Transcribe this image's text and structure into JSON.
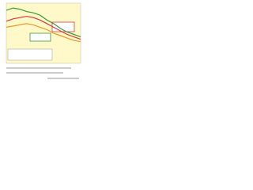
{
  "chart_data": {
    "type": "line",
    "categories": [
      null,
      null,
      null,
      null,
      null,
      null,
      null,
      null,
      null,
      null,
      null,
      null
    ],
    "ylim": [
      0,
      100
    ],
    "background": "#fff8c8",
    "series": [
      {
        "color": "#3a9a3a",
        "values": [
          88,
          92,
          90,
          86,
          84,
          80,
          72,
          66,
          58,
          52,
          48,
          44
        ]
      },
      {
        "color": "#d83a3a",
        "values": [
          70,
          74,
          76,
          78,
          76,
          72,
          66,
          60,
          54,
          48,
          44,
          40
        ]
      },
      {
        "color": "#e89a2a",
        "values": [
          60,
          62,
          64,
          66,
          64,
          60,
          56,
          50,
          46,
          42,
          38,
          36
        ]
      }
    ]
  }
}
